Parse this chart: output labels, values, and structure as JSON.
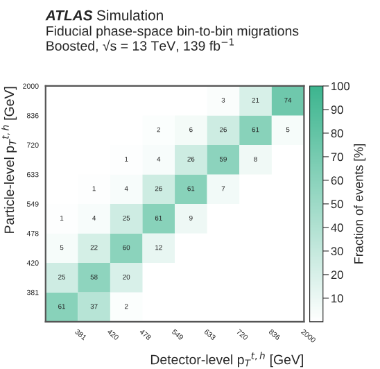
{
  "chart_data": {
    "type": "heatmap",
    "title": "ATLAS Simulation",
    "subtitle": "Fiducial phase-space bin-to-bin migrations\nBoosted, √s = 13 TeV, 139 fb$^{−1}$",
    "xlabel": "Detector-level p$_{T}$$^{t,h}$ [GeV]",
    "ylabel": "Particle-level p$_{T}$$^{t,h}$ [GeV]",
    "clabel": "Fraction of events [%]",
    "categories": [
      "381",
      "420",
      "478",
      "549",
      "633",
      "720",
      "836",
      "2000"
    ],
    "y_categories": [
      "2000",
      "836",
      "720",
      "633",
      "549",
      "478",
      "420",
      "381"
    ],
    "cells": [
      [
        null,
        null,
        null,
        null,
        null,
        3,
        21,
        74
      ],
      [
        null,
        null,
        null,
        2,
        6,
        26,
        61,
        5
      ],
      [
        null,
        null,
        1,
        4,
        26,
        59,
        8,
        null
      ],
      [
        null,
        1,
        4,
        26,
        61,
        7,
        null,
        null
      ],
      [
        1,
        4,
        25,
        61,
        9,
        null,
        null,
        null
      ],
      [
        5,
        22,
        60,
        12,
        null,
        null,
        null,
        null
      ],
      [
        25,
        58,
        20,
        null,
        null,
        null,
        null,
        null
      ],
      [
        61,
        37,
        2,
        null,
        null,
        null,
        null,
        null
      ]
    ],
    "clim": [
      0,
      100
    ],
    "cticks": [
      10,
      20,
      30,
      40,
      50,
      60,
      70,
      80,
      90,
      100
    ],
    "data_labels": true
  }
}
